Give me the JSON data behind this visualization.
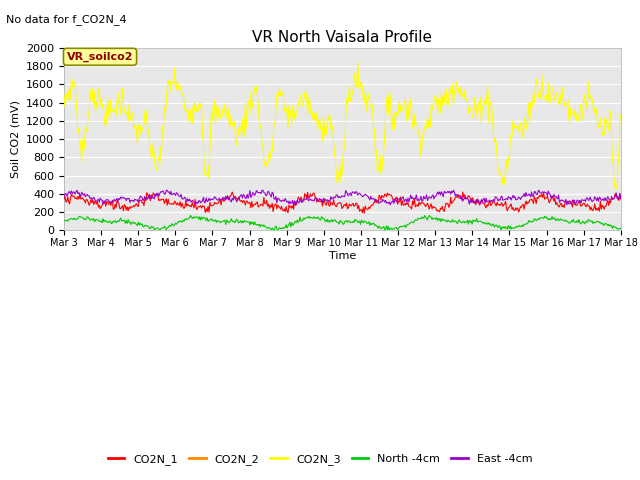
{
  "title": "VR North Vaisala Profile",
  "subtitle": "No data for f_CO2N_4",
  "ylabel": "Soil CO2 (mV)",
  "xlabel": "Time",
  "ylim": [
    0,
    2000
  ],
  "legend_label": "VR_soilco2",
  "series_labels": [
    "CO2N_1",
    "CO2N_2",
    "CO2N_3",
    "North -4cm",
    "East -4cm"
  ],
  "series_colors": [
    "#ff0000",
    "#ff8800",
    "#ffff00",
    "#00cc00",
    "#9900cc"
  ],
  "background_color": "#e8e8e8",
  "x_tick_labels": [
    "Mar 3",
    "Mar 4",
    "Mar 5",
    "Mar 6",
    "Mar 7",
    "Mar 8",
    "Mar 9",
    "Mar 10",
    "Mar 11",
    "Mar 12",
    "Mar 13",
    "Mar 14",
    "Mar 15",
    "Mar 16",
    "Mar 17",
    "Mar 18"
  ],
  "n_points": 600,
  "figsize": [
    6.4,
    4.8
  ],
  "dpi": 100
}
